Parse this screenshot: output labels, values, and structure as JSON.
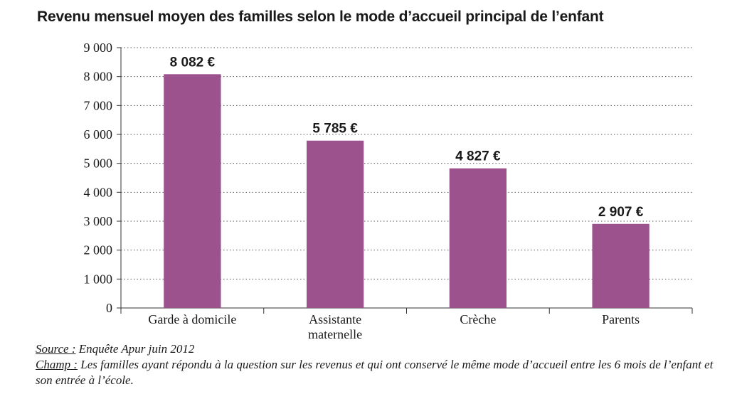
{
  "chart_data": {
    "type": "bar",
    "title": "Revenu mensuel moyen des familles selon le mode d’accueil principal de l’enfant",
    "categories": [
      [
        "Garde à domicile"
      ],
      [
        "Assistante",
        "maternelle"
      ],
      [
        "Crèche"
      ],
      [
        "Parents"
      ]
    ],
    "values": [
      8082,
      5785,
      4827,
      2907
    ],
    "data_labels": [
      "8 082 €",
      "5 785 €",
      "4 827 €",
      "2 907 €"
    ],
    "yticks": [
      0,
      1000,
      2000,
      3000,
      4000,
      5000,
      6000,
      7000,
      8000,
      9000
    ],
    "ytick_labels": [
      "0",
      "1 000",
      "2 000",
      "3 000",
      "4 000",
      "5 000",
      "6 000",
      "7 000",
      "8 000",
      "9 000"
    ],
    "ylim": [
      0,
      9000
    ],
    "grid": "horizontal dotted",
    "bar_color": "#9b528d"
  },
  "source": {
    "label": "Source :",
    "text": " Enquête Apur juin 2012"
  },
  "scope": {
    "label": "Champ :",
    "text": " Les familles ayant répondu à la question sur les revenus et qui ont conservé le même mode d’accueil entre les 6 mois de l’enfant et son entrée à l’école."
  }
}
